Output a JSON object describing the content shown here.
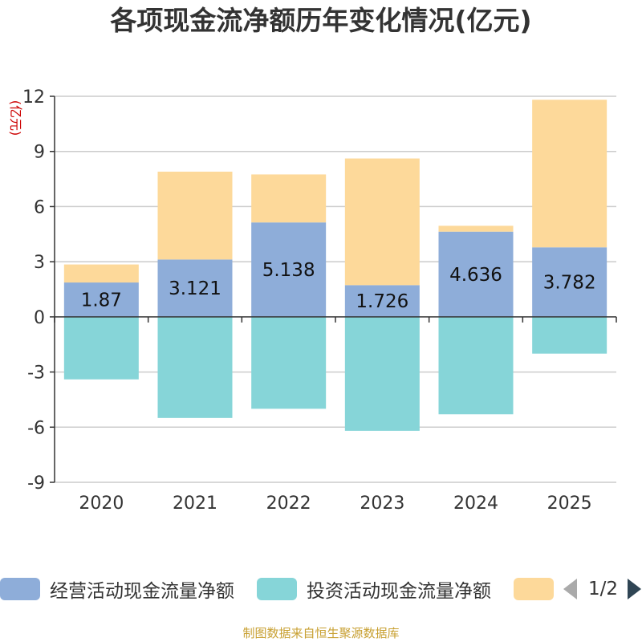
{
  "title": "各项现金流净额历年变化情况(亿元)",
  "unit_label": "(亿元)",
  "source": "制图数据来自恒生聚源数据库",
  "legend": {
    "items": [
      {
        "label": "经营活动现金流量净额",
        "color": "#8ead d9"
      },
      {
        "label": "投资活动现金流量净额",
        "color": "#86d5d8"
      },
      {
        "label": "",
        "color": "#fdd99a"
      }
    ],
    "pager": "1/2"
  },
  "chart_data": {
    "type": "bar",
    "stacked": true,
    "title": "各项现金流净额历年变化情况(亿元)",
    "ylabel": "(亿元)",
    "ylim": [
      -9,
      12
    ],
    "yticks": [
      12,
      9,
      6,
      3,
      0,
      -3,
      -6,
      -9
    ],
    "categories": [
      "2020",
      "2021",
      "2022",
      "2023",
      "2024",
      "2025"
    ],
    "series": [
      {
        "name": "经营活动现金流量净额",
        "color": "#8eadd9",
        "values": [
          1.87,
          3.121,
          5.138,
          1.726,
          4.636,
          3.782
        ],
        "labels": [
          "1.87",
          "3.121",
          "5.138",
          "1.726",
          "4.636",
          "3.782"
        ]
      },
      {
        "name": "投资活动现金流量净额",
        "color": "#86d5d8",
        "values": [
          -3.4,
          -5.5,
          -5.0,
          -6.2,
          -5.3,
          -2.0
        ]
      },
      {
        "name": "",
        "color": "#fdd99a",
        "values": [
          0.98,
          4.78,
          2.61,
          6.89,
          0.32,
          8.03
        ]
      }
    ],
    "grid": true,
    "legend_position": "bottom"
  }
}
